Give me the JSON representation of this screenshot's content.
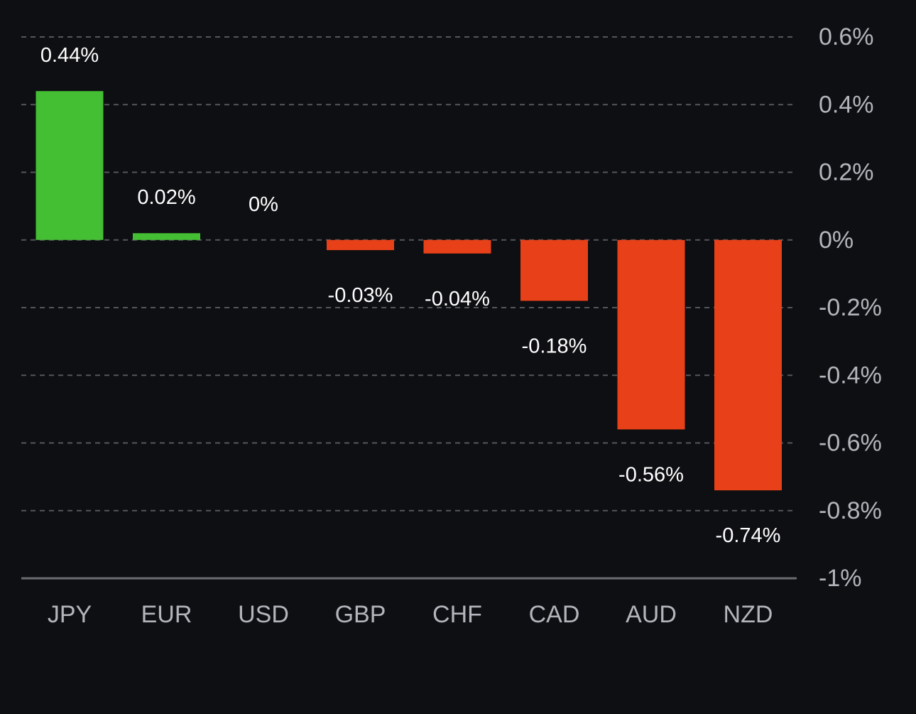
{
  "chart_data": {
    "type": "bar",
    "categories": [
      "JPY",
      "EUR",
      "USD",
      "GBP",
      "CHF",
      "CAD",
      "AUD",
      "NZD"
    ],
    "values": [
      0.44,
      0.02,
      0,
      -0.03,
      -0.04,
      -0.18,
      -0.56,
      -0.74
    ],
    "value_labels": [
      "0.44%",
      "0.02%",
      "0%",
      "-0.03%",
      "-0.04%",
      "-0.18%",
      "-0.56%",
      "-0.74%"
    ],
    "y_ticks": [
      0.6,
      0.4,
      0.2,
      0,
      -0.2,
      -0.4,
      -0.6,
      -0.8,
      -1
    ],
    "y_tick_labels": [
      "0.6%",
      "0.4%",
      "0.2%",
      "0%",
      "-0.2%",
      "-0.4%",
      "-0.6%",
      "-0.8%",
      "-1%"
    ],
    "ylim": [
      -1,
      0.6
    ],
    "title": "",
    "xlabel": "",
    "ylabel": "",
    "grid": true,
    "y_axis_position": "right",
    "colors": {
      "positive": "#44be33",
      "negative": "#e84018",
      "background": "#0e0f12"
    }
  }
}
